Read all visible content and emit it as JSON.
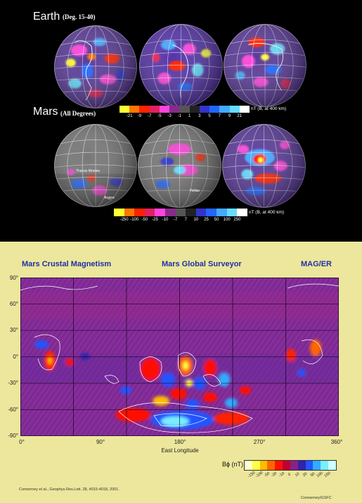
{
  "top": {
    "earth": {
      "title": "Earth",
      "subtitle": "(Deg. 15-40)"
    },
    "mars": {
      "title": "Mars",
      "subtitle": "(All Degrees)"
    },
    "earth_colorbar": {
      "unit": "nT (B, at 400 km)",
      "ticks": [
        "-21",
        "-9",
        "-7",
        "-5",
        "-3",
        "-1",
        "1",
        "3",
        "5",
        "7",
        "9",
        "21"
      ],
      "colors": [
        "#ffff33",
        "#ff7700",
        "#ff2200",
        "#e02060",
        "#ff44dd",
        "#8a2a8a",
        "#555555",
        "#222222",
        "#3333cc",
        "#2266ff",
        "#44aaff",
        "#66ddff",
        "#ffffff"
      ]
    },
    "mars_colorbar": {
      "unit": "nT (B, at 400 km)",
      "ticks": [
        "-250",
        "-100",
        "-50",
        "-25",
        "-10",
        "-7",
        "7",
        "10",
        "25",
        "50",
        "100",
        "250"
      ],
      "colors": [
        "#ffff33",
        "#ff7700",
        "#ff2200",
        "#e02060",
        "#ff44dd",
        "#8a2a8a",
        "#555555",
        "#222222",
        "#3333cc",
        "#2266ff",
        "#44aaff",
        "#66ddff",
        "#ffffff"
      ]
    },
    "mars_globe_labels": [
      "Tharsis Montes",
      "Argyre",
      "Hellas"
    ]
  },
  "bottom": {
    "header_left": "Mars Crustal Magnetism",
    "header_center": "Mars Global Surveyor",
    "header_right": "MAG/ER",
    "y_ticks": [
      "90°",
      "60°",
      "30°",
      "0°",
      "-30°",
      "-60°",
      "-90°"
    ],
    "x_ticks": [
      "0°",
      "90°",
      "180°",
      "270°",
      "360°"
    ],
    "xlabel": "East Longitude",
    "legend": {
      "label": "Bϕ (nT)",
      "ticks": [
        "-150",
        "-100",
        "-50",
        "-20",
        "-10",
        "0",
        "10",
        "20",
        "50",
        "100",
        "150"
      ],
      "colors": [
        "#ffffcc",
        "#ffff44",
        "#ffbb00",
        "#ff6600",
        "#ff1100",
        "#c00030",
        "#882288",
        "#3322aa",
        "#2255ff",
        "#33aaff",
        "#77eeff",
        "#ccffff"
      ]
    },
    "citation": "Connerney et al., Geophys.Res.Lett. 28, 4015-4018, 2001.",
    "credit": "Connerney/GSFC"
  }
}
